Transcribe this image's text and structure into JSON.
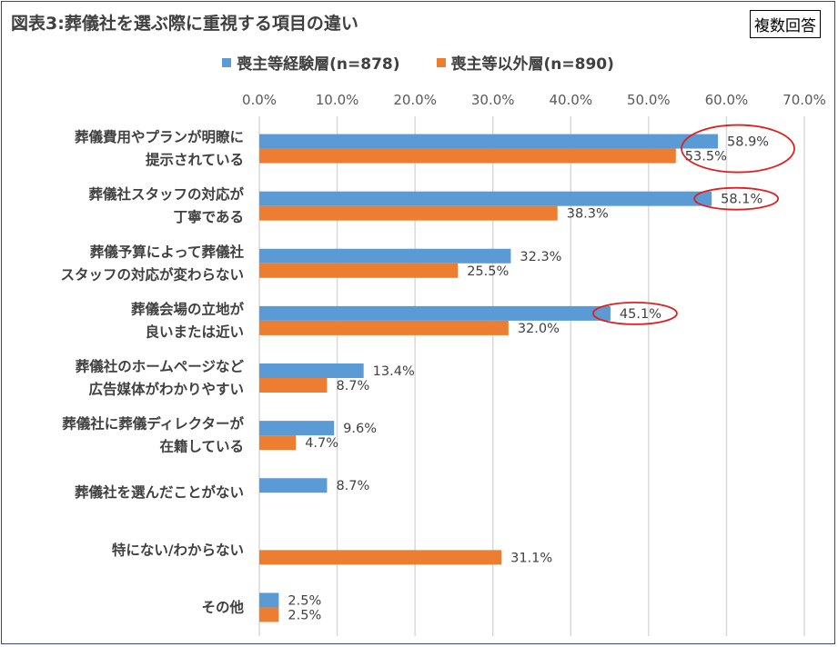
{
  "title": "図表3:葬儀社を選ぶ際に重視する項目の違い",
  "badge": "複数回答",
  "colors": {
    "series1": "#5b9bd5",
    "series2": "#ed7d31",
    "grid": "#d9d9d9",
    "highlight": "#e02020"
  },
  "chart_data": {
    "type": "bar",
    "orientation": "horizontal",
    "xlim": [
      0,
      70
    ],
    "ticks": [
      "0.0%",
      "10.0%",
      "20.0%",
      "30.0%",
      "40.0%",
      "50.0%",
      "60.0%",
      "70.0%"
    ],
    "tick_values": [
      0,
      10,
      20,
      30,
      40,
      50,
      60,
      70
    ],
    "legend_position": "top",
    "grid": true,
    "categories": [
      [
        "葬儀費用やプランが明瞭に",
        "提示されている"
      ],
      [
        "葬儀社スタッフの対応が",
        "丁寧である"
      ],
      [
        "葬儀予算によって葬儀社",
        "スタッフの対応が変わらない"
      ],
      [
        "葬儀会場の立地が",
        "良いまたは近い"
      ],
      [
        "葬儀社のホームページなど",
        "広告媒体がわかりやすい"
      ],
      [
        "葬儀社に葬儀ディレクターが",
        "在籍している"
      ],
      [
        "葬儀社を選んだことがない"
      ],
      [
        "特にない/わからない"
      ],
      [
        "その他"
      ]
    ],
    "series": [
      {
        "name": "喪主等経験層(n=878)",
        "values": [
          58.9,
          58.1,
          32.3,
          45.1,
          13.4,
          9.6,
          8.7,
          null,
          2.5
        ],
        "labels": [
          "58.9%",
          "58.1%",
          "32.3%",
          "45.1%",
          "13.4%",
          "9.6%",
          "8.7%",
          "",
          "2.5%"
        ]
      },
      {
        "name": "喪主等以外層(n=890)",
        "values": [
          53.5,
          38.3,
          25.5,
          32.0,
          8.7,
          4.7,
          null,
          31.1,
          2.5
        ],
        "labels": [
          "53.5%",
          "38.3%",
          "25.5%",
          "32.0%",
          "8.7%",
          "4.7%",
          "",
          "31.1%",
          "2.5%"
        ]
      }
    ],
    "highlights": [
      {
        "category_index": 0,
        "series": "both"
      },
      {
        "category_index": 1,
        "series": 0
      },
      {
        "category_index": 3,
        "series": 0
      }
    ]
  }
}
